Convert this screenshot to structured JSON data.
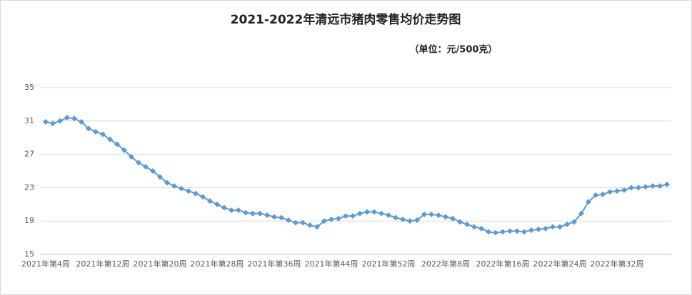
{
  "chart_data": {
    "type": "line",
    "title": "2021-2022年清远市猪肉零售均价走势图",
    "subtitle": "（单位：元/500克）",
    "categories": [
      "2021年第4周",
      null,
      null,
      null,
      null,
      null,
      null,
      null,
      "2021年第12周",
      null,
      null,
      null,
      null,
      null,
      null,
      null,
      "2021年第20周",
      null,
      null,
      null,
      null,
      null,
      null,
      null,
      "2021年第28周",
      null,
      null,
      null,
      null,
      null,
      null,
      null,
      "2021年第36周",
      null,
      null,
      null,
      null,
      null,
      null,
      null,
      "2021年第44周",
      null,
      null,
      null,
      null,
      null,
      null,
      null,
      "2021年第52周",
      null,
      null,
      null,
      null,
      null,
      null,
      null,
      "2022年第8周",
      null,
      null,
      null,
      null,
      null,
      null,
      null,
      "2022年第16周",
      null,
      null,
      null,
      null,
      null,
      null,
      null,
      "2022年第24周",
      null,
      null,
      null,
      null,
      null,
      null,
      null,
      "2022年第32周",
      null,
      null,
      null,
      null,
      null,
      null,
      null
    ],
    "series": [
      {
        "color": "#5b9bd5",
        "values": [
          30.9,
          30.7,
          31.0,
          31.4,
          31.3,
          30.9,
          30.1,
          29.7,
          29.4,
          28.8,
          28.2,
          27.5,
          26.7,
          26.0,
          25.5,
          25.0,
          24.3,
          23.6,
          23.2,
          22.9,
          22.6,
          22.3,
          21.9,
          21.4,
          21.0,
          20.6,
          20.3,
          20.3,
          20.0,
          19.9,
          19.9,
          19.7,
          19.5,
          19.4,
          19.1,
          18.8,
          18.8,
          18.5,
          18.3,
          19.0,
          19.2,
          19.3,
          19.6,
          19.6,
          19.9,
          20.1,
          20.1,
          19.9,
          19.7,
          19.4,
          19.2,
          19.0,
          19.1,
          19.8,
          19.8,
          19.7,
          19.5,
          19.3,
          18.9,
          18.6,
          18.3,
          18.1,
          17.7,
          17.6,
          17.7,
          17.8,
          17.8,
          17.7,
          17.9,
          18.0,
          18.1,
          18.3,
          18.3,
          18.6,
          18.9,
          19.9,
          21.3,
          22.1,
          22.2,
          22.5,
          22.6,
          22.7,
          23.0,
          23.0,
          23.1,
          23.2,
          23.2,
          23.4
        ]
      }
    ],
    "ylim": [
      15,
      35
    ],
    "yticks": [
      15,
      19,
      23,
      27,
      31,
      35
    ],
    "grid": true
  }
}
